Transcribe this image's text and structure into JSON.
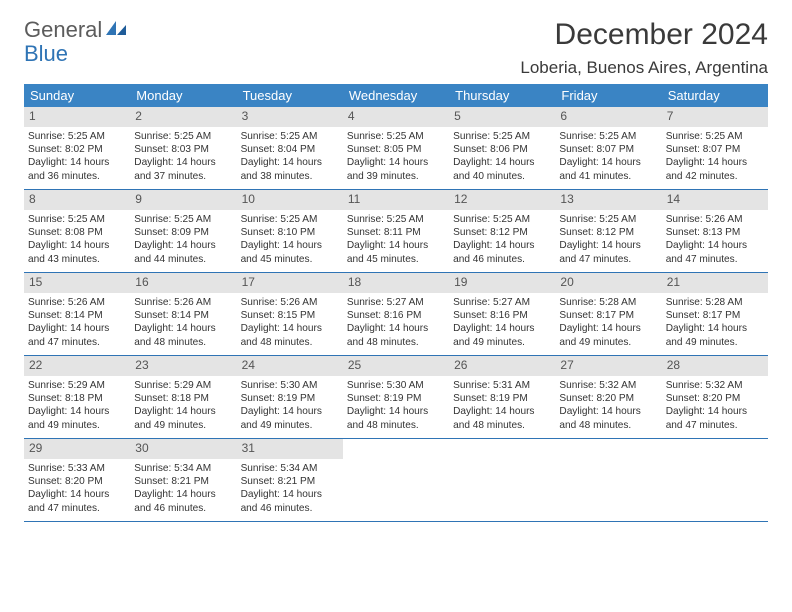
{
  "logo": {
    "text1": "General",
    "text2": "Blue"
  },
  "title": "December 2024",
  "location": "Loberia, Buenos Aires, Argentina",
  "dayNames": [
    "Sunday",
    "Monday",
    "Tuesday",
    "Wednesday",
    "Thursday",
    "Friday",
    "Saturday"
  ],
  "colors": {
    "headerBg": "#3a84c4",
    "headerText": "#ffffff",
    "ruleColor": "#2f74b5",
    "daynumBg": "#e4e4e4",
    "logoGray": "#5c5c5c",
    "logoBlue": "#2f74b5",
    "bodyText": "#333333"
  },
  "weeks": [
    [
      {
        "num": "1",
        "sunrise": "5:25 AM",
        "sunset": "8:02 PM",
        "daylight": "14 hours and 36 minutes."
      },
      {
        "num": "2",
        "sunrise": "5:25 AM",
        "sunset": "8:03 PM",
        "daylight": "14 hours and 37 minutes."
      },
      {
        "num": "3",
        "sunrise": "5:25 AM",
        "sunset": "8:04 PM",
        "daylight": "14 hours and 38 minutes."
      },
      {
        "num": "4",
        "sunrise": "5:25 AM",
        "sunset": "8:05 PM",
        "daylight": "14 hours and 39 minutes."
      },
      {
        "num": "5",
        "sunrise": "5:25 AM",
        "sunset": "8:06 PM",
        "daylight": "14 hours and 40 minutes."
      },
      {
        "num": "6",
        "sunrise": "5:25 AM",
        "sunset": "8:07 PM",
        "daylight": "14 hours and 41 minutes."
      },
      {
        "num": "7",
        "sunrise": "5:25 AM",
        "sunset": "8:07 PM",
        "daylight": "14 hours and 42 minutes."
      }
    ],
    [
      {
        "num": "8",
        "sunrise": "5:25 AM",
        "sunset": "8:08 PM",
        "daylight": "14 hours and 43 minutes."
      },
      {
        "num": "9",
        "sunrise": "5:25 AM",
        "sunset": "8:09 PM",
        "daylight": "14 hours and 44 minutes."
      },
      {
        "num": "10",
        "sunrise": "5:25 AM",
        "sunset": "8:10 PM",
        "daylight": "14 hours and 45 minutes."
      },
      {
        "num": "11",
        "sunrise": "5:25 AM",
        "sunset": "8:11 PM",
        "daylight": "14 hours and 45 minutes."
      },
      {
        "num": "12",
        "sunrise": "5:25 AM",
        "sunset": "8:12 PM",
        "daylight": "14 hours and 46 minutes."
      },
      {
        "num": "13",
        "sunrise": "5:25 AM",
        "sunset": "8:12 PM",
        "daylight": "14 hours and 47 minutes."
      },
      {
        "num": "14",
        "sunrise": "5:26 AM",
        "sunset": "8:13 PM",
        "daylight": "14 hours and 47 minutes."
      }
    ],
    [
      {
        "num": "15",
        "sunrise": "5:26 AM",
        "sunset": "8:14 PM",
        "daylight": "14 hours and 47 minutes."
      },
      {
        "num": "16",
        "sunrise": "5:26 AM",
        "sunset": "8:14 PM",
        "daylight": "14 hours and 48 minutes."
      },
      {
        "num": "17",
        "sunrise": "5:26 AM",
        "sunset": "8:15 PM",
        "daylight": "14 hours and 48 minutes."
      },
      {
        "num": "18",
        "sunrise": "5:27 AM",
        "sunset": "8:16 PM",
        "daylight": "14 hours and 48 minutes."
      },
      {
        "num": "19",
        "sunrise": "5:27 AM",
        "sunset": "8:16 PM",
        "daylight": "14 hours and 49 minutes."
      },
      {
        "num": "20",
        "sunrise": "5:28 AM",
        "sunset": "8:17 PM",
        "daylight": "14 hours and 49 minutes."
      },
      {
        "num": "21",
        "sunrise": "5:28 AM",
        "sunset": "8:17 PM",
        "daylight": "14 hours and 49 minutes."
      }
    ],
    [
      {
        "num": "22",
        "sunrise": "5:29 AM",
        "sunset": "8:18 PM",
        "daylight": "14 hours and 49 minutes."
      },
      {
        "num": "23",
        "sunrise": "5:29 AM",
        "sunset": "8:18 PM",
        "daylight": "14 hours and 49 minutes."
      },
      {
        "num": "24",
        "sunrise": "5:30 AM",
        "sunset": "8:19 PM",
        "daylight": "14 hours and 49 minutes."
      },
      {
        "num": "25",
        "sunrise": "5:30 AM",
        "sunset": "8:19 PM",
        "daylight": "14 hours and 48 minutes."
      },
      {
        "num": "26",
        "sunrise": "5:31 AM",
        "sunset": "8:19 PM",
        "daylight": "14 hours and 48 minutes."
      },
      {
        "num": "27",
        "sunrise": "5:32 AM",
        "sunset": "8:20 PM",
        "daylight": "14 hours and 48 minutes."
      },
      {
        "num": "28",
        "sunrise": "5:32 AM",
        "sunset": "8:20 PM",
        "daylight": "14 hours and 47 minutes."
      }
    ],
    [
      {
        "num": "29",
        "sunrise": "5:33 AM",
        "sunset": "8:20 PM",
        "daylight": "14 hours and 47 minutes."
      },
      {
        "num": "30",
        "sunrise": "5:34 AM",
        "sunset": "8:21 PM",
        "daylight": "14 hours and 46 minutes."
      },
      {
        "num": "31",
        "sunrise": "5:34 AM",
        "sunset": "8:21 PM",
        "daylight": "14 hours and 46 minutes."
      },
      null,
      null,
      null,
      null
    ]
  ],
  "labels": {
    "sunrise": "Sunrise:",
    "sunset": "Sunset:",
    "daylight": "Daylight:"
  }
}
